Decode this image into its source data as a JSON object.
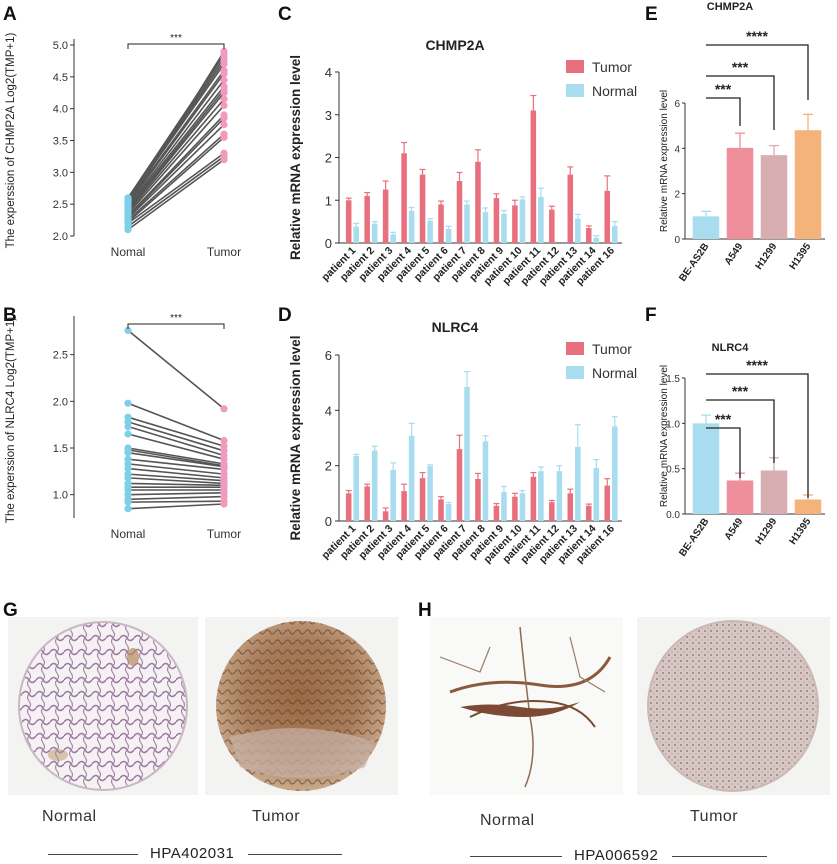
{
  "panels": {
    "A": "A",
    "B": "B",
    "C": "C",
    "D": "D",
    "E": "E",
    "F": "F",
    "G": "G",
    "H": "H"
  },
  "chart_data": [
    {
      "id": "A",
      "type": "paired-scatter",
      "ylabel": "The experssion of CHMP2A  Log2(TMP+1)",
      "categories": [
        "Nomal",
        "Tumor"
      ],
      "ylim": [
        2.0,
        5.0
      ],
      "yticks": [
        "2.0",
        "2.5",
        "3.0",
        "3.5",
        "4.0",
        "4.5",
        "5.0"
      ],
      "significance": "***",
      "pairs": [
        [
          2.1,
          3.2
        ],
        [
          2.15,
          3.25
        ],
        [
          2.2,
          3.3
        ],
        [
          2.22,
          3.55
        ],
        [
          2.25,
          3.6
        ],
        [
          2.28,
          3.75
        ],
        [
          2.3,
          3.85
        ],
        [
          2.32,
          3.9
        ],
        [
          2.35,
          4.05
        ],
        [
          2.38,
          4.15
        ],
        [
          2.4,
          4.25
        ],
        [
          2.42,
          4.3
        ],
        [
          2.45,
          4.35
        ],
        [
          2.47,
          4.45
        ],
        [
          2.5,
          4.55
        ],
        [
          2.52,
          4.6
        ],
        [
          2.55,
          4.7
        ],
        [
          2.57,
          4.75
        ],
        [
          2.58,
          4.8
        ],
        [
          2.6,
          4.85
        ],
        [
          2.48,
          4.9
        ]
      ],
      "colors": {
        "normal": "#7ecfe8",
        "tumor": "#f09ac0",
        "line": "#555555"
      }
    },
    {
      "id": "B",
      "type": "paired-scatter",
      "ylabel": "The experssion of NLRC4  Log2(TMP+1)",
      "categories": [
        "Nomal",
        "Tumor"
      ],
      "ylim": [
        0.75,
        2.85
      ],
      "yticks": [
        "1.0",
        "1.5",
        "2.0",
        "2.5"
      ],
      "significance": "***",
      "pairs": [
        [
          2.76,
          1.92
        ],
        [
          1.98,
          1.58
        ],
        [
          1.83,
          1.52
        ],
        [
          1.78,
          1.47
        ],
        [
          1.73,
          1.42
        ],
        [
          1.65,
          1.38
        ],
        [
          1.5,
          1.33
        ],
        [
          1.48,
          1.31
        ],
        [
          1.45,
          1.3
        ],
        [
          1.38,
          1.27
        ],
        [
          1.33,
          1.22
        ],
        [
          1.28,
          1.18
        ],
        [
          1.22,
          1.15
        ],
        [
          1.18,
          1.12
        ],
        [
          1.12,
          1.1
        ],
        [
          1.08,
          1.08
        ],
        [
          1.05,
          1.05
        ],
        [
          1.0,
          1.02
        ],
        [
          0.95,
          0.98
        ],
        [
          0.92,
          0.93
        ],
        [
          0.85,
          0.9
        ]
      ],
      "colors": {
        "normal": "#7ecfe8",
        "tumor": "#f09ac0",
        "line": "#555555"
      }
    },
    {
      "id": "C",
      "type": "bar",
      "title": "CHMP2A",
      "ylabel": "Relative mRNA expression level",
      "categories": [
        "patient 1",
        "patient 2",
        "patient 3",
        "patient 4",
        "patient 5",
        "patient 6",
        "patient 7",
        "patient 8",
        "patient 9",
        "patient 10",
        "patient 11",
        "patient 12",
        "patient 13",
        "patient 14",
        "patient 16"
      ],
      "ylim": [
        0,
        4
      ],
      "yticks": [
        "0",
        "1",
        "2",
        "3",
        "4"
      ],
      "series": [
        {
          "name": "Tumor",
          "color": "#e8707e",
          "values": [
            1.0,
            1.1,
            1.25,
            2.1,
            1.6,
            0.9,
            1.45,
            1.9,
            1.05,
            0.88,
            3.1,
            0.78,
            1.6,
            0.35,
            1.22
          ],
          "errors": [
            0.05,
            0.08,
            0.2,
            0.25,
            0.12,
            0.08,
            0.2,
            0.28,
            0.1,
            0.12,
            0.35,
            0.08,
            0.18,
            0.05,
            0.35
          ]
        },
        {
          "name": "Normal",
          "color": "#a8dcef",
          "values": [
            0.38,
            0.45,
            0.2,
            0.75,
            0.52,
            0.33,
            0.9,
            0.72,
            0.68,
            1.02,
            1.08,
            0.0,
            0.57,
            0.12,
            0.4
          ],
          "errors": [
            0.08,
            0.05,
            0.05,
            0.08,
            0.05,
            0.06,
            0.08,
            0.1,
            0.08,
            0.06,
            0.2,
            0.0,
            0.1,
            0.05,
            0.1
          ]
        }
      ]
    },
    {
      "id": "D",
      "type": "bar",
      "title": "NLRC4",
      "ylabel": "Relative mRNA expression level",
      "categories": [
        "patient 1",
        "patient 2",
        "patient 3",
        "patient 4",
        "patient 5",
        "patient 6",
        "patient 7",
        "patient 8",
        "patient 9",
        "patient 10",
        "patient 11",
        "patient 12",
        "patient 13",
        "patient 14",
        "patient 16"
      ],
      "ylim": [
        0,
        6
      ],
      "yticks": [
        "0",
        "2",
        "4",
        "6"
      ],
      "series": [
        {
          "name": "Tumor",
          "color": "#e8707e",
          "values": [
            1.0,
            1.25,
            0.35,
            1.08,
            1.55,
            0.78,
            2.6,
            1.52,
            0.55,
            0.88,
            1.6,
            0.68,
            1.0,
            0.55,
            1.28
          ],
          "errors": [
            0.1,
            0.08,
            0.12,
            0.25,
            0.2,
            0.1,
            0.5,
            0.2,
            0.08,
            0.12,
            0.15,
            0.06,
            0.15,
            0.06,
            0.25
          ]
        },
        {
          "name": "Normal",
          "color": "#a8dcef",
          "values": [
            2.35,
            2.55,
            1.85,
            3.08,
            1.98,
            0.62,
            4.85,
            2.88,
            1.05,
            1.0,
            1.8,
            1.8,
            2.68,
            1.92,
            3.42
          ],
          "errors": [
            0.06,
            0.15,
            0.25,
            0.45,
            0.05,
            0.05,
            0.55,
            0.2,
            0.2,
            0.1,
            0.15,
            0.2,
            0.8,
            0.3,
            0.35
          ]
        }
      ]
    },
    {
      "id": "E",
      "type": "bar",
      "title": "CHMP2A",
      "ylabel": "Relative mRNA expression level",
      "categories": [
        "BE-AS2B",
        "A549",
        "H1299",
        "H1395"
      ],
      "ylim": [
        0,
        6
      ],
      "yticks": [
        "0",
        "2",
        "4",
        "6"
      ],
      "values": [
        1.0,
        4.02,
        3.7,
        4.8
      ],
      "errors": [
        0.22,
        0.65,
        0.42,
        0.7
      ],
      "colors": [
        "#a8dcef",
        "#ef8f9b",
        "#d9aeb3",
        "#f4b37a"
      ],
      "significance": [
        "***",
        "***",
        "****"
      ]
    },
    {
      "id": "F",
      "type": "bar",
      "title": "NLRC4",
      "ylabel": "Relative mRNA expression level",
      "categories": [
        "BE-AS2B",
        "A549",
        "H1299",
        "H1395"
      ],
      "ylim": [
        0,
        1.5
      ],
      "yticks": [
        "0.0",
        "0.5",
        "1.0",
        "1.5"
      ],
      "values": [
        1.0,
        0.37,
        0.48,
        0.16
      ],
      "errors": [
        0.09,
        0.08,
        0.14,
        0.05
      ],
      "colors": [
        "#a8dcef",
        "#ef8f9b",
        "#d9aeb3",
        "#f4b37a"
      ],
      "significance": [
        "***",
        "***",
        "****"
      ]
    }
  ],
  "ihc": {
    "normal_label": "Normal",
    "tumor_label": "Tumor",
    "antibody_g": "HPA402031",
    "antibody_h": "HPA006592"
  }
}
